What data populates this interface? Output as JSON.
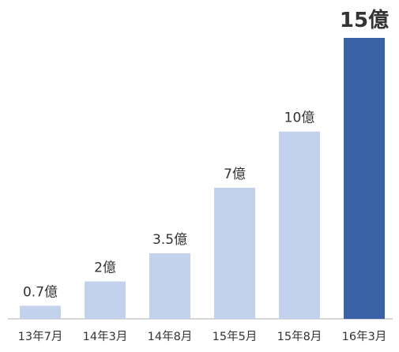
{
  "chart_data": {
    "type": "bar",
    "categories": [
      "13年7月",
      "14年3月",
      "14年8月",
      "15年5月",
      "15年8月",
      "16年3月"
    ],
    "values": [
      0.7,
      2,
      3.5,
      7,
      10,
      15
    ],
    "data_labels": [
      "0.7億",
      "2億",
      "3.5億",
      "7億",
      "10億",
      "15億"
    ],
    "unit": "億",
    "highlight_index": 5,
    "ylim": [
      0,
      15
    ],
    "grid": false,
    "legend": "none",
    "colors": {
      "bar": "#c2d2ed",
      "highlight_bar": "#3a62a7",
      "baseline": "#c8c8c8",
      "text": "#333333"
    }
  }
}
